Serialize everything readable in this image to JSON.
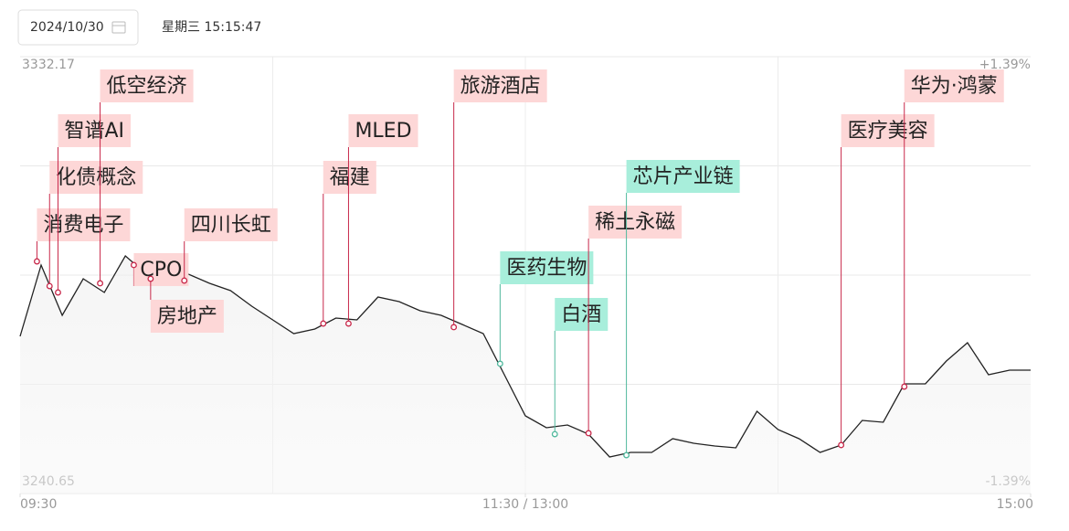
{
  "header": {
    "date": "2024/10/30",
    "time": "星期三 15:15:47"
  },
  "chart_data": {
    "type": "line",
    "x": [
      0,
      5,
      10,
      15,
      20,
      25,
      30,
      35,
      40,
      45,
      50,
      55,
      60,
      65,
      70,
      75,
      80,
      85,
      90,
      95,
      100,
      105,
      110,
      115,
      120,
      125,
      130,
      135,
      140,
      145,
      150,
      155,
      160,
      165,
      170,
      175,
      180,
      185,
      190,
      195,
      200,
      205,
      210,
      215,
      220,
      225,
      230,
      235,
      240
    ],
    "values": [
      3273.58,
      3288.52,
      3277.98,
      3285.64,
      3282.77,
      3290.43,
      3286.6,
      3286.6,
      3286.6,
      3284.69,
      3283.15,
      3279.9,
      3277.03,
      3274.16,
      3275.11,
      3277.41,
      3277.03,
      3281.81,
      3280.86,
      3278.94,
      3277.98,
      3276.07,
      3274.16,
      3265.54,
      3256.92,
      3254.44,
      3255.01,
      3253.09,
      3248.31,
      3249.27,
      3249.27,
      3252.14,
      3251.18,
      3250.61,
      3250.22,
      3257.88,
      3254.05,
      3252.14,
      3249.27,
      3250.8,
      3255.97,
      3255.58,
      3263.63,
      3263.63,
      3268.41,
      3272.24,
      3265.54,
      3266.5,
      3266.5
    ],
    "color": "#222222",
    "xlim": [
      0,
      240
    ],
    "xticks": [
      {
        "value": 0,
        "label": "09:30"
      },
      {
        "value": 120,
        "label": "11:30 / 13:00"
      },
      {
        "value": 240,
        "label": "15:00"
      }
    ],
    "ylim": [
      3240.65,
      3332.17
    ],
    "yticks": [
      3240.65,
      3332.17
    ],
    "y2lim": [
      -1.39,
      1.39
    ],
    "y2ticks": [
      {
        "value": -1.39,
        "label": "-1.39%"
      },
      {
        "value": 1.39,
        "label": "+1.39%"
      }
    ],
    "grid": true,
    "annotations": [
      {
        "label": "消费电子",
        "x": 4,
        "value": 3289.28,
        "color": "#c8284a"
      },
      {
        "label": "化债概念",
        "x": 7,
        "value": 3284.11,
        "color": "#c8284a"
      },
      {
        "label": "智谱AI",
        "x": 9,
        "value": 3282.77,
        "color": "#c8284a"
      },
      {
        "label": "低空经济",
        "x": 19,
        "value": 3284.69,
        "color": "#c8284a"
      },
      {
        "label": "CPO",
        "x": 27,
        "value": 3288.52,
        "color": "#c8284a"
      },
      {
        "label": "房地产",
        "x": 31,
        "value": 3285.64,
        "color": "#c8284a"
      },
      {
        "label": "四川长虹",
        "x": 39,
        "value": 3285.26,
        "color": "#c8284a"
      },
      {
        "label": "福建",
        "x": 72,
        "value": 3276.26,
        "color": "#c8284a"
      },
      {
        "label": "MLED",
        "x": 78,
        "value": 3276.26,
        "color": "#c8284a"
      },
      {
        "label": "旅游酒店",
        "x": 103,
        "value": 3275.5,
        "color": "#c8284a"
      },
      {
        "label": "医药生物",
        "x": 114,
        "value": 3267.84,
        "color": "#4fb89c"
      },
      {
        "label": "白酒",
        "x": 127,
        "value": 3253.09,
        "color": "#4fb89c"
      },
      {
        "label": "稀土永磁",
        "x": 135,
        "value": 3253.29,
        "color": "#c8284a"
      },
      {
        "label": "芯片产业链",
        "x": 144,
        "value": 3248.69,
        "color": "#4fb89c"
      },
      {
        "label": "医疗美容",
        "x": 195,
        "value": 3250.8,
        "color": "#c8284a"
      },
      {
        "label": "华为·鸿蒙",
        "x": 210,
        "value": 3263.05,
        "color": "#c8284a"
      }
    ]
  }
}
